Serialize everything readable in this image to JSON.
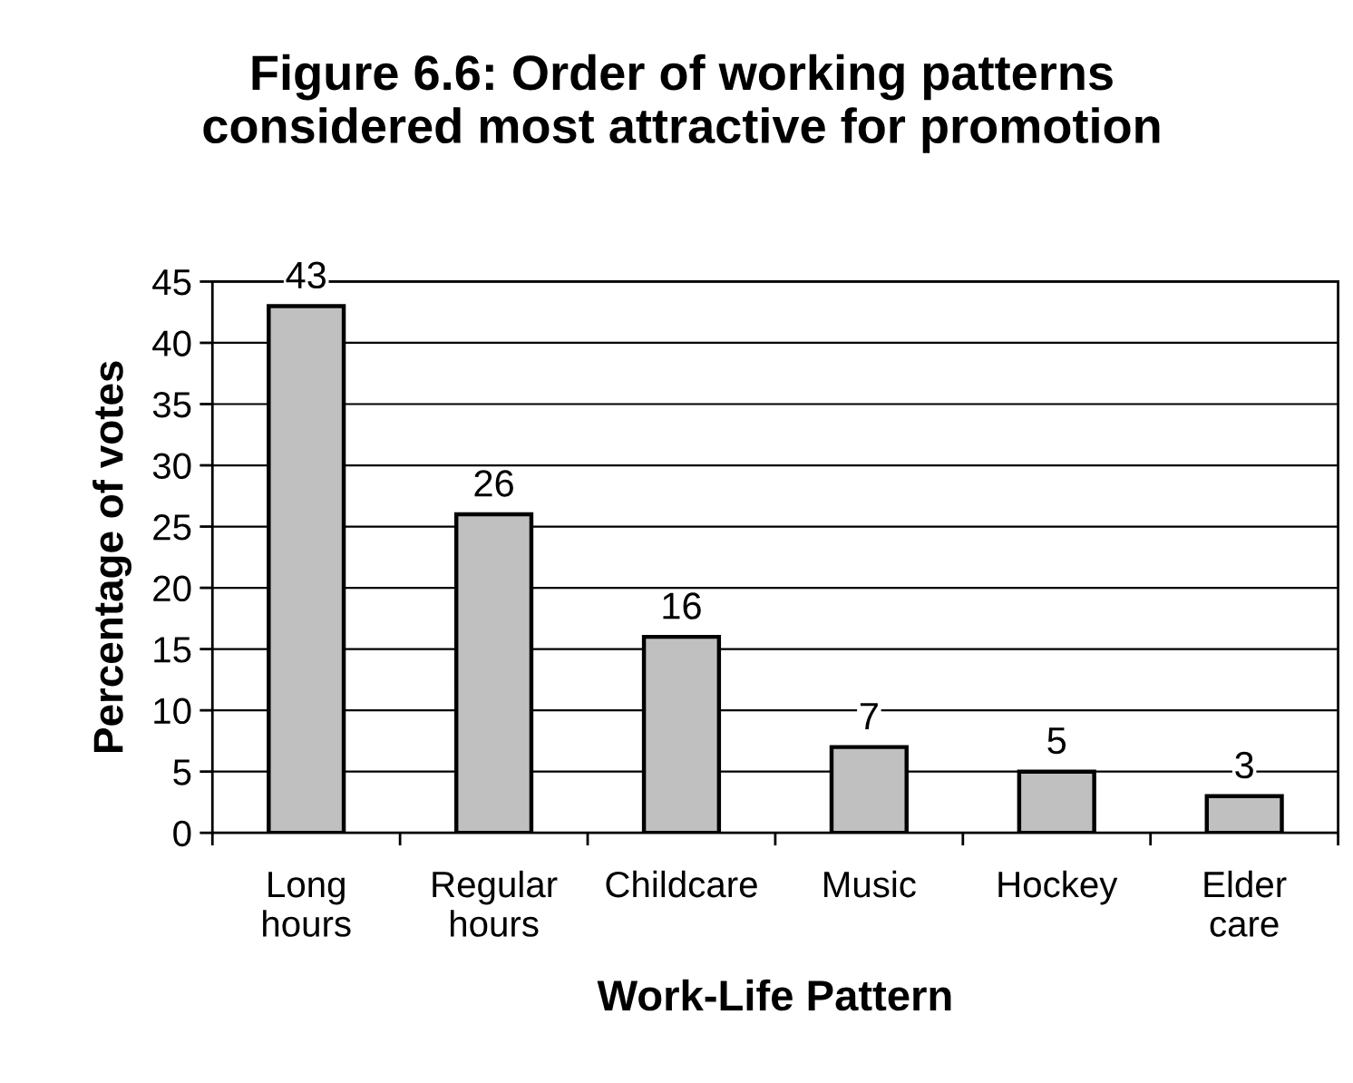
{
  "chart_data": {
    "type": "bar",
    "title": "Figure 6.6: Order of working patterns\nconsidered most attractive for promotion",
    "xlabel": "Work-Life Pattern",
    "ylabel": "Percentage of votes",
    "categories": [
      "Long\nhours",
      "Regular\nhours",
      "Childcare",
      "Music",
      "Hockey",
      "Elder\ncare"
    ],
    "values": [
      43,
      26,
      16,
      7,
      5,
      3
    ],
    "color": "#c0c0c0",
    "ylim": [
      0,
      45
    ],
    "yticks": [
      0,
      5,
      10,
      15,
      20,
      25,
      30,
      35,
      40,
      45
    ],
    "grid": "y",
    "data_labels": true
  }
}
